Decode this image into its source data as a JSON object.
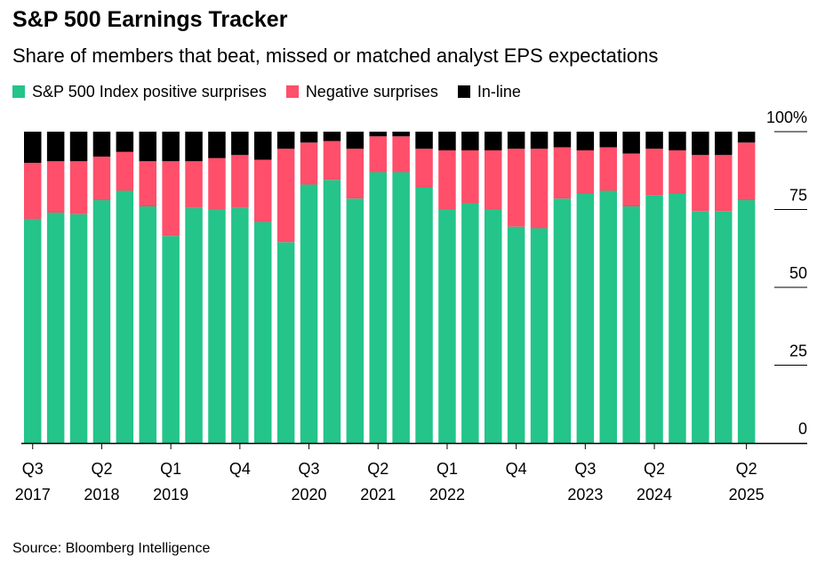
{
  "header": {
    "title": "S&P 500 Earnings Tracker",
    "subtitle": "Share of members that beat, missed or matched analyst EPS expectations"
  },
  "footer": {
    "source": "Source: Bloomberg Intelligence"
  },
  "colors": {
    "positive": "#24c48a",
    "negative": "#ff4f6a",
    "inline": "#000000"
  },
  "chart_data": {
    "type": "bar",
    "stacked": true,
    "categories": [
      "Q3 2017",
      "Q4 2017",
      "Q1 2018",
      "Q2 2018",
      "Q3 2018",
      "Q4 2018",
      "Q1 2019",
      "Q2 2019",
      "Q3 2019",
      "Q4 2019",
      "Q1 2020",
      "Q2 2020",
      "Q3 2020",
      "Q4 2020",
      "Q1 2021",
      "Q2 2021",
      "Q3 2021",
      "Q4 2021",
      "Q1 2022",
      "Q2 2022",
      "Q3 2022",
      "Q4 2022",
      "Q1 2023",
      "Q2 2023",
      "Q3 2023",
      "Q4 2023",
      "Q1 2024",
      "Q2 2024",
      "Q3 2024",
      "Q4 2024",
      "Q1 2025",
      "Q2 2025"
    ],
    "series": [
      {
        "name": "S&P 500 Index positive surprises",
        "color": "#24c48a",
        "values": [
          72,
          74,
          73.5,
          78,
          81,
          76,
          66.5,
          75.5,
          75,
          75.5,
          71,
          64.5,
          83,
          84.5,
          78.5,
          87,
          87,
          82,
          75,
          77,
          75,
          69.5,
          69,
          78.5,
          80,
          81,
          76,
          79.5,
          80,
          74.5,
          74.5,
          78
        ]
      },
      {
        "name": "Negative surprises",
        "color": "#ff4f6a",
        "values": [
          18,
          16.5,
          17,
          14,
          12.5,
          14.5,
          24,
          15,
          16.5,
          17,
          20,
          30,
          13.5,
          12.5,
          16,
          11.5,
          11.5,
          12.5,
          19,
          17,
          19,
          25,
          25.5,
          16.5,
          14,
          14,
          17,
          15,
          14,
          18,
          18,
          18.5
        ]
      },
      {
        "name": "In-line",
        "color": "#000000",
        "values": [
          10,
          9.5,
          9.5,
          8,
          6.5,
          9.5,
          9.5,
          9.5,
          8.5,
          7.5,
          9,
          5.5,
          3.5,
          3,
          5.5,
          1.5,
          1.5,
          5.5,
          6,
          6,
          6,
          5.5,
          5.5,
          5,
          6,
          5,
          7,
          5.5,
          6,
          7.5,
          7.5,
          3.5
        ]
      }
    ],
    "x_tick_labels": [
      {
        "index": 0,
        "quarter": "Q3",
        "year": "2017"
      },
      {
        "index": 3,
        "quarter": "Q2",
        "year": "2018"
      },
      {
        "index": 6,
        "quarter": "Q1",
        "year": "2019"
      },
      {
        "index": 9,
        "quarter": "Q4",
        "year": ""
      },
      {
        "index": 12,
        "quarter": "Q3",
        "year": "2020"
      },
      {
        "index": 15,
        "quarter": "Q2",
        "year": "2021"
      },
      {
        "index": 18,
        "quarter": "Q1",
        "year": "2022"
      },
      {
        "index": 21,
        "quarter": "Q4",
        "year": ""
      },
      {
        "index": 24,
        "quarter": "Q3",
        "year": "2023"
      },
      {
        "index": 27,
        "quarter": "Q2",
        "year": "2024"
      },
      {
        "index": 31,
        "quarter": "Q2",
        "year": "2025"
      }
    ],
    "y_ticks": [
      0,
      25,
      50,
      75,
      100
    ],
    "y_tick_labels": [
      "0",
      "25",
      "50",
      "75",
      "100%"
    ],
    "ylim": [
      0,
      100
    ],
    "legend_position": "top-left",
    "grid": false
  }
}
